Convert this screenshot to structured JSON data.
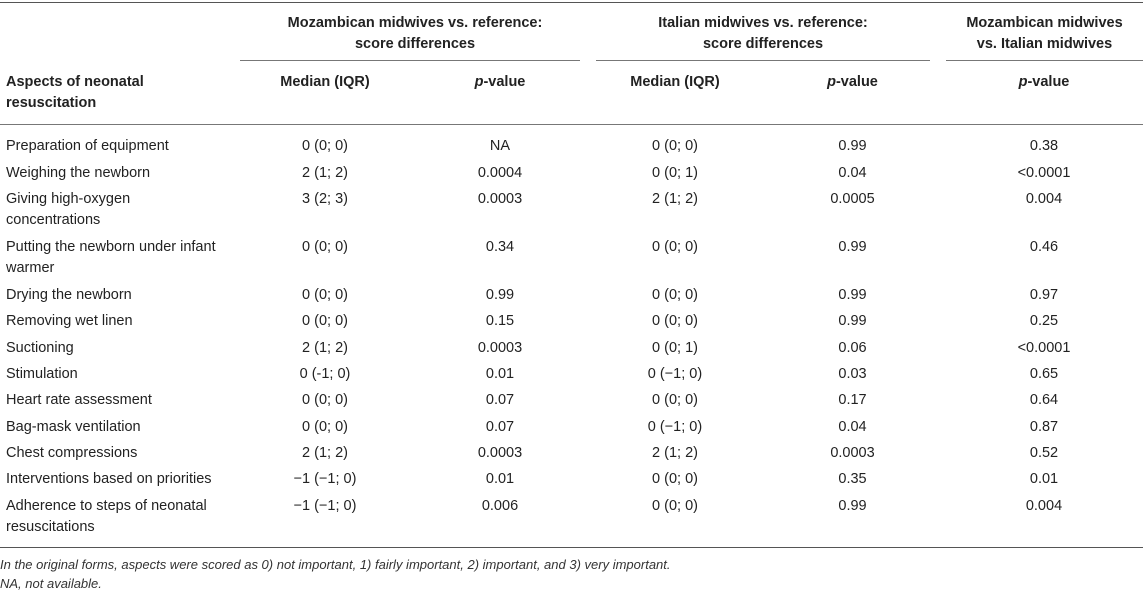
{
  "table": {
    "groups": [
      {
        "line1": "Mozambican midwives vs. reference:",
        "line2": "score differences"
      },
      {
        "line1": "Italian midwives vs. reference:",
        "line2": "score differences"
      },
      {
        "line1": "Mozambican midwives",
        "line2": "vs. Italian midwives"
      }
    ],
    "row_header": "Aspects of neonatal resuscitation",
    "sub_headers": {
      "median": "Median (IQR)",
      "p_prefix": "p",
      "p_suffix": "-value"
    },
    "rows": [
      {
        "aspect": "Preparation of equipment",
        "m1": "0 (0; 0)",
        "p1": "NA",
        "m2": "0 (0; 0)",
        "p2": "0.99",
        "p3": "0.38"
      },
      {
        "aspect": "Weighing the newborn",
        "m1": "2 (1; 2)",
        "p1": "0.0004",
        "m2": "0 (0; 1)",
        "p2": "0.04",
        "p3": "<0.0001"
      },
      {
        "aspect": "Giving high-oxygen concentrations",
        "m1": "3 (2; 3)",
        "p1": "0.0003",
        "m2": "2 (1; 2)",
        "p2": "0.0005",
        "p3": "0.004"
      },
      {
        "aspect": "Putting the newborn under infant warmer",
        "m1": "0 (0; 0)",
        "p1": "0.34",
        "m2": "0 (0; 0)",
        "p2": "0.99",
        "p3": "0.46"
      },
      {
        "aspect": "Drying the newborn",
        "m1": "0 (0; 0)",
        "p1": "0.99",
        "m2": "0 (0; 0)",
        "p2": "0.99",
        "p3": "0.97"
      },
      {
        "aspect": "Removing wet linen",
        "m1": "0 (0; 0)",
        "p1": "0.15",
        "m2": "0 (0; 0)",
        "p2": "0.99",
        "p3": "0.25"
      },
      {
        "aspect": "Suctioning",
        "m1": "2 (1; 2)",
        "p1": "0.0003",
        "m2": "0 (0; 1)",
        "p2": "0.06",
        "p3": "<0.0001"
      },
      {
        "aspect": "Stimulation",
        "m1": "0 (-1; 0)",
        "p1": "0.01",
        "m2": "0 (−1; 0)",
        "p2": "0.03",
        "p3": "0.65"
      },
      {
        "aspect": "Heart rate assessment",
        "m1": "0 (0; 0)",
        "p1": "0.07",
        "m2": "0 (0; 0)",
        "p2": "0.17",
        "p3": "0.64"
      },
      {
        "aspect": "Bag-mask ventilation",
        "m1": "0 (0; 0)",
        "p1": "0.07",
        "m2": "0 (−1; 0)",
        "p2": "0.04",
        "p3": "0.87"
      },
      {
        "aspect": "Chest compressions",
        "m1": "2 (1; 2)",
        "p1": "0.0003",
        "m2": "2 (1; 2)",
        "p2": "0.0003",
        "p3": "0.52"
      },
      {
        "aspect": "Interventions based on priorities",
        "m1": "−1 (−1; 0)",
        "p1": "0.01",
        "m2": "0 (0; 0)",
        "p2": "0.35",
        "p3": "0.01"
      },
      {
        "aspect": "Adherence to steps of neonatal resuscitations",
        "m1": "−1 (−1; 0)",
        "p1": "0.006",
        "m2": "0 (0; 0)",
        "p2": "0.99",
        "p3": "0.004"
      }
    ],
    "footnotes": [
      "In the original forms, aspects were scored as 0) not important, 1) fairly important, 2) important, and 3) very important.",
      "NA, not available."
    ]
  }
}
